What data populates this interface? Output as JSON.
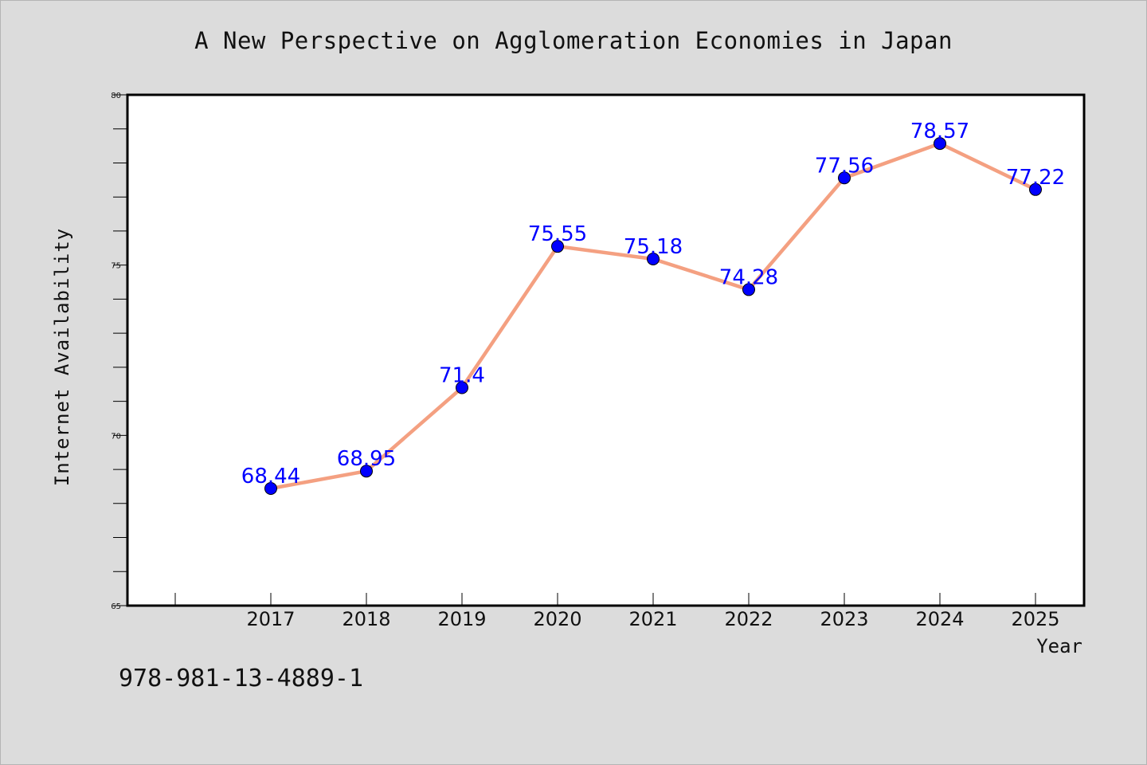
{
  "colors": {
    "background": "#dcdcdc",
    "plot_background": "#ffffff",
    "line": "#f4a081",
    "marker": "#0000ff",
    "data_label": "#0000ff",
    "axis": "#000000"
  },
  "footer": {
    "text": "978-981-13-4889-1"
  },
  "chart_data": {
    "type": "line",
    "title": "A New Perspective on Agglomeration Economies in Japan",
    "xlabel": "Year",
    "ylabel": "Internet Availability",
    "categories": [
      "2017",
      "2018",
      "2019",
      "2020",
      "2021",
      "2022",
      "2023",
      "2024",
      "2025"
    ],
    "values": [
      68.44,
      68.95,
      71.4,
      75.55,
      75.18,
      74.28,
      77.56,
      78.57,
      77.22
    ],
    "data_labels": [
      "68.44",
      "68.95",
      "71.4",
      "75.55",
      "75.18",
      "74.28",
      "77.56",
      "78.57",
      "77.22"
    ],
    "ylim": [
      65,
      80
    ],
    "yticks": [
      65,
      70,
      75,
      80
    ],
    "ytick_labels": [
      "65",
      "70",
      "75",
      "80"
    ],
    "grid": false,
    "legend": "none"
  }
}
